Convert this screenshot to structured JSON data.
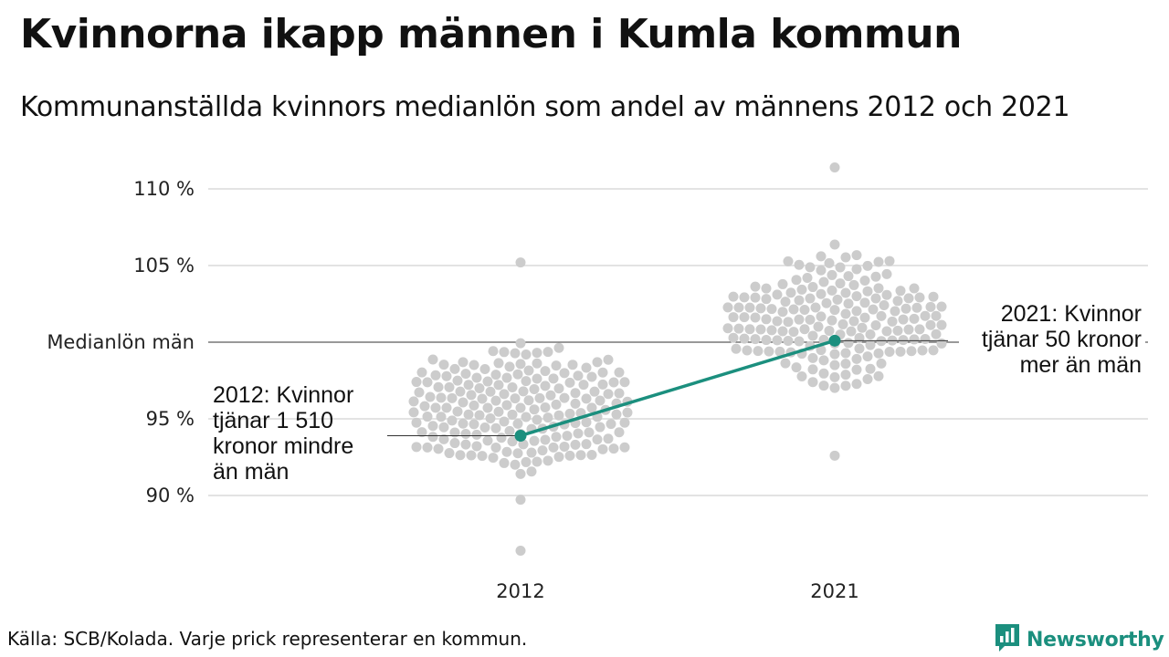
{
  "header": {
    "title": "Kvinnorna ikapp männen i Kumla kommun",
    "subtitle": "Kommunanställda kvinnors medianlön som andel av männens 2012 och 2021"
  },
  "chart_data": {
    "type": "scatter",
    "title": "Kvinnorna ikapp männen i Kumla kommun",
    "subtitle": "Kommunanställda kvinnors medianlön som andel av männens 2012 och 2021",
    "categories": [
      "2012",
      "2021"
    ],
    "ylim": [
      86,
      112
    ],
    "y_ticks": [
      {
        "value": 90,
        "label": "90 %"
      },
      {
        "value": 95,
        "label": "95 %"
      },
      {
        "value": 100,
        "label": "Medianlön män"
      },
      {
        "value": 105,
        "label": "105 %"
      },
      {
        "value": 110,
        "label": "110 %"
      }
    ],
    "reference_line": {
      "value": 100,
      "label": "Medianlön män"
    },
    "grid": true,
    "beeswarm": [
      {
        "year": "2012",
        "min": 86.4,
        "max": 105.2,
        "center": 95.6,
        "spread": 2.2
      },
      {
        "year": "2021",
        "min": 92.6,
        "max": 111.4,
        "center": 101.5,
        "spread": 2.3
      }
    ],
    "highlight": {
      "name": "Kumla",
      "color": "#1b8f7e",
      "points": [
        {
          "x": "2012",
          "y": 93.9
        },
        {
          "x": "2021",
          "y": 100.1
        }
      ]
    },
    "annotations": [
      {
        "year": "2012",
        "lines": [
          "2012: Kvinnor",
          "tjänar 1 510",
          "kronor mindre",
          "än män"
        ]
      },
      {
        "year": "2021",
        "lines": [
          "2021: Kvinnor",
          "tjänar 50 kronor",
          "mer än män"
        ]
      }
    ],
    "colors": {
      "dots": "#cccccc",
      "highlight": "#1b8f7e",
      "grid": "#e3e3e3",
      "reference": "#333333"
    }
  },
  "footer": {
    "source": "Källa: SCB/Kolada. Varje prick representerar en kommun.",
    "brand": "Newsworthy",
    "brand_icon": "newsworthy-logo-icon"
  }
}
